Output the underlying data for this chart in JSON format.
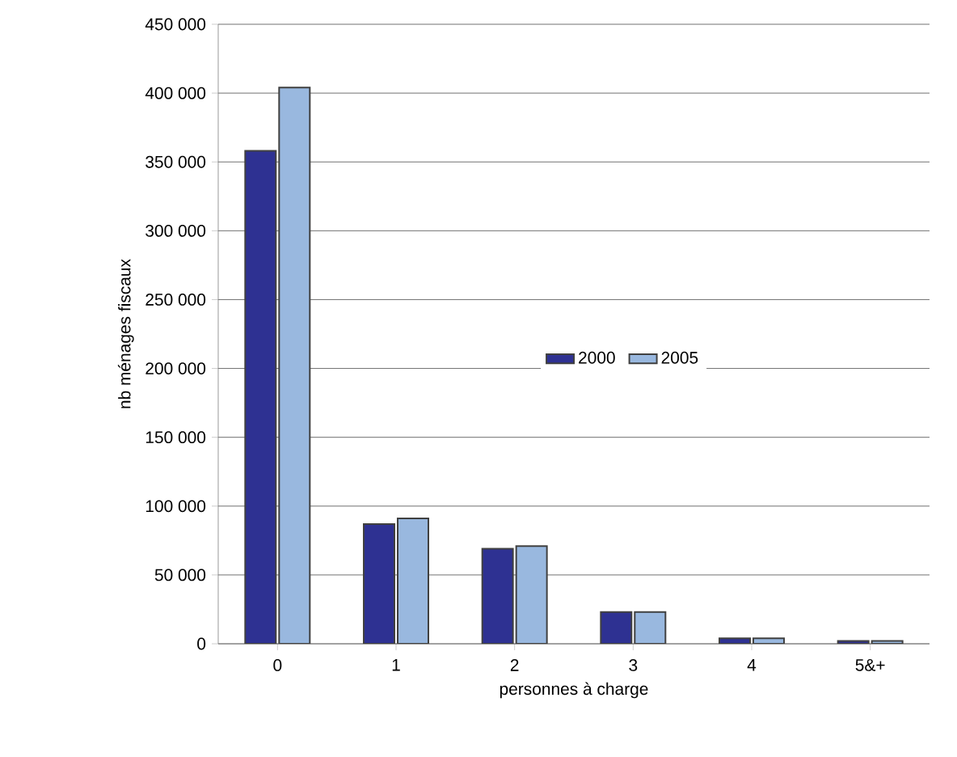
{
  "chart_data": {
    "type": "bar",
    "xlabel": "personnes à charge",
    "ylabel": "nb ménages fiscaux",
    "categories": [
      "0",
      "1",
      "2",
      "3",
      "4",
      "5&+"
    ],
    "series": [
      {
        "name": "2000",
        "color": "#2e3192",
        "values": [
          358000,
          87000,
          69000,
          23000,
          4000,
          2000
        ]
      },
      {
        "name": "2005",
        "color": "#99b8df",
        "values": [
          404000,
          91000,
          71000,
          23000,
          4000,
          2000
        ]
      }
    ],
    "ylim": [
      0,
      450000
    ],
    "yticks": [
      {
        "value": 0,
        "label": "0"
      },
      {
        "value": 50000,
        "label": "50 000"
      },
      {
        "value": 100000,
        "label": "100 000"
      },
      {
        "value": 150000,
        "label": "150 000"
      },
      {
        "value": 200000,
        "label": "200 000"
      },
      {
        "value": 250000,
        "label": "250 000"
      },
      {
        "value": 300000,
        "label": "300 000"
      },
      {
        "value": 350000,
        "label": "350 000"
      },
      {
        "value": 400000,
        "label": "400 000"
      },
      {
        "value": 450000,
        "label": "450 000"
      }
    ],
    "grid": "y",
    "legend": "center"
  }
}
